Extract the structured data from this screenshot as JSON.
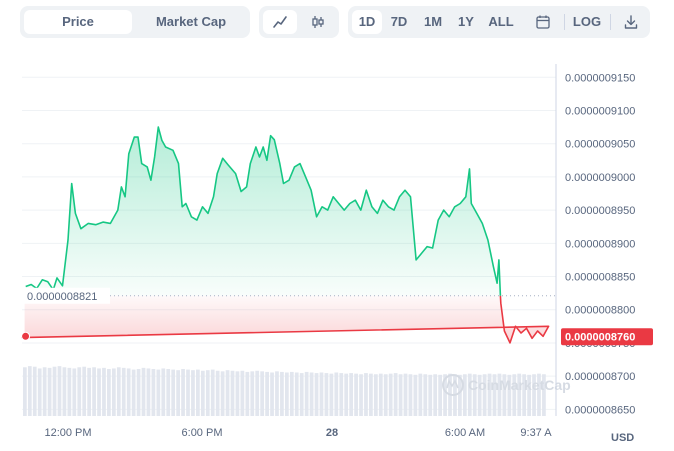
{
  "toolbar": {
    "metric_tabs": [
      {
        "label": "Price",
        "active": true
      },
      {
        "label": "Market Cap",
        "active": false
      }
    ],
    "chart_style": [
      {
        "icon": "line-chart-icon",
        "active": true
      },
      {
        "icon": "candlestick-icon",
        "active": false
      }
    ],
    "ranges": [
      {
        "label": "1D",
        "active": true
      },
      {
        "label": "7D",
        "active": false
      },
      {
        "label": "1M",
        "active": false
      },
      {
        "label": "1Y",
        "active": false
      },
      {
        "label": "ALL",
        "active": false
      }
    ],
    "calendar_icon": "calendar-icon",
    "log_label": "LOG",
    "download_icon": "download-icon"
  },
  "currency": "USD",
  "watermark": "CoinMarketCap",
  "colors": {
    "up": "#16c784",
    "down": "#ea3943",
    "grid": "#eff2f5",
    "text": "#58667e"
  },
  "chart_data": {
    "type": "area",
    "y_ticks": [
      "0.0000008650",
      "0.0000008700",
      "0.0000008750",
      "0.0000008800",
      "0.0000008850",
      "0.0000008900",
      "0.0000008950",
      "0.0000009000",
      "0.0000009050",
      "0.0000009100",
      "0.0000009150"
    ],
    "ylim": [
      8.64e-07,
      9.17e-07
    ],
    "x_ticks": [
      "12:00 PM",
      "6:00 PM",
      "28",
      "6:00 AM",
      "9:37 A"
    ],
    "reference_price": 8.821e-07,
    "reference_label": "0.0000008821",
    "current_price": 8.76e-07,
    "current_label": "0.0000008760",
    "price_points": [
      [
        "09:40",
        8.835e-07
      ],
      [
        "09:55",
        8.838e-07
      ],
      [
        "10:10",
        8.832e-07
      ],
      [
        "10:25",
        8.845e-07
      ],
      [
        "10:40",
        8.842e-07
      ],
      [
        "10:55",
        8.83e-07
      ],
      [
        "11:05",
        8.848e-07
      ],
      [
        "11:20",
        8.836e-07
      ],
      [
        "11:35",
        8.905e-07
      ],
      [
        "11:45",
        8.99e-07
      ],
      [
        "11:55",
        8.945e-07
      ],
      [
        "12:10",
        8.922e-07
      ],
      [
        "12:30",
        8.93e-07
      ],
      [
        "12:50",
        8.928e-07
      ],
      [
        "13:10",
        8.932e-07
      ],
      [
        "13:30",
        8.93e-07
      ],
      [
        "13:50",
        8.95e-07
      ],
      [
        "14:00",
        8.985e-07
      ],
      [
        "14:10",
        8.97e-07
      ],
      [
        "14:20",
        9.035e-07
      ],
      [
        "14:35",
        9.06e-07
      ],
      [
        "14:45",
        9.06e-07
      ],
      [
        "14:55",
        9.02e-07
      ],
      [
        "15:10",
        9.015e-07
      ],
      [
        "15:20",
        8.995e-07
      ],
      [
        "15:30",
        9.03e-07
      ],
      [
        "15:40",
        9.075e-07
      ],
      [
        "15:50",
        9.055e-07
      ],
      [
        "16:00",
        9.045e-07
      ],
      [
        "16:20",
        9.04e-07
      ],
      [
        "16:35",
        9.02e-07
      ],
      [
        "16:45",
        8.955e-07
      ],
      [
        "16:55",
        8.96e-07
      ],
      [
        "17:10",
        8.94e-07
      ],
      [
        "17:25",
        8.935e-07
      ],
      [
        "17:40",
        8.955e-07
      ],
      [
        "17:55",
        8.945e-07
      ],
      [
        "18:10",
        8.97e-07
      ],
      [
        "18:20",
        9.005e-07
      ],
      [
        "18:35",
        9.028e-07
      ],
      [
        "18:50",
        9.018e-07
      ],
      [
        "19:10",
        9.005e-07
      ],
      [
        "19:25",
        8.978e-07
      ],
      [
        "19:40",
        8.985e-07
      ],
      [
        "19:50",
        9.02e-07
      ],
      [
        "20:05",
        9.045e-07
      ],
      [
        "20:15",
        9.03e-07
      ],
      [
        "20:25",
        9.045e-07
      ],
      [
        "20:35",
        9.025e-07
      ],
      [
        "20:45",
        9.062e-07
      ],
      [
        "20:55",
        9.056e-07
      ],
      [
        "21:10",
        9.02e-07
      ],
      [
        "21:20",
        8.99e-07
      ],
      [
        "21:35",
        8.995e-07
      ],
      [
        "21:50",
        9.015e-07
      ],
      [
        "22:05",
        9.02e-07
      ],
      [
        "22:20",
        9e-07
      ],
      [
        "22:35",
        8.98e-07
      ],
      [
        "22:50",
        8.94e-07
      ],
      [
        "23:05",
        8.955e-07
      ],
      [
        "23:20",
        8.95e-07
      ],
      [
        "23:35",
        8.97e-07
      ],
      [
        "23:50",
        8.96e-07
      ],
      [
        "00:05",
        8.95e-07
      ],
      [
        "00:20",
        8.96e-07
      ],
      [
        "00:35",
        8.965e-07
      ],
      [
        "00:50",
        8.95e-07
      ],
      [
        "01:05",
        8.98e-07
      ],
      [
        "01:20",
        8.955e-07
      ],
      [
        "01:35",
        8.945e-07
      ],
      [
        "01:50",
        8.965e-07
      ],
      [
        "02:05",
        8.955e-07
      ],
      [
        "02:20",
        8.95e-07
      ],
      [
        "02:35",
        8.97e-07
      ],
      [
        "02:50",
        8.98e-07
      ],
      [
        "03:05",
        8.97e-07
      ],
      [
        "03:20",
        8.875e-07
      ],
      [
        "03:35",
        8.885e-07
      ],
      [
        "03:50",
        8.895e-07
      ],
      [
        "04:05",
        8.893e-07
      ],
      [
        "04:20",
        8.935e-07
      ],
      [
        "04:35",
        8.95e-07
      ],
      [
        "04:50",
        8.94e-07
      ],
      [
        "05:05",
        8.955e-07
      ],
      [
        "05:20",
        8.96e-07
      ],
      [
        "05:35",
        8.97e-07
      ],
      [
        "05:45",
        9.012e-07
      ],
      [
        "05:50",
        8.96e-07
      ],
      [
        "06:05",
        8.945e-07
      ],
      [
        "06:20",
        8.93e-07
      ],
      [
        "06:35",
        8.905e-07
      ],
      [
        "06:50",
        8.865e-07
      ],
      [
        "07:00",
        8.84e-07
      ],
      [
        "07:05",
        8.875e-07
      ],
      [
        "07:10",
        8.81e-07
      ],
      [
        "07:20",
        8.768e-07
      ],
      [
        "07:35",
        8.75e-07
      ],
      [
        "07:50",
        8.775e-07
      ],
      [
        "08:05",
        8.765e-07
      ],
      [
        "08:20",
        8.772e-07
      ],
      [
        "08:35",
        8.757e-07
      ],
      [
        "08:50",
        8.768e-07
      ],
      [
        "09:05",
        8.76e-07
      ],
      [
        "09:20",
        8.775e-07
      ],
      [
        "09:30",
        8.758e-07
      ],
      [
        "09:37",
        8.76e-07
      ]
    ],
    "volume": [
      0.84,
      0.86,
      0.85,
      0.82,
      0.84,
      0.83,
      0.85,
      0.86,
      0.84,
      0.83,
      0.82,
      0.84,
      0.85,
      0.83,
      0.84,
      0.82,
      0.83,
      0.81,
      0.82,
      0.84,
      0.83,
      0.82,
      0.8,
      0.81,
      0.83,
      0.82,
      0.81,
      0.8,
      0.82,
      0.81,
      0.8,
      0.79,
      0.81,
      0.8,
      0.79,
      0.8,
      0.78,
      0.79,
      0.8,
      0.78,
      0.77,
      0.79,
      0.78,
      0.77,
      0.78,
      0.76,
      0.77,
      0.78,
      0.77,
      0.76,
      0.75,
      0.77,
      0.76,
      0.75,
      0.76,
      0.75,
      0.74,
      0.76,
      0.75,
      0.74,
      0.75,
      0.74,
      0.73,
      0.75,
      0.74,
      0.73,
      0.74,
      0.73,
      0.72,
      0.74,
      0.73,
      0.72,
      0.73,
      0.72,
      0.73,
      0.74,
      0.72,
      0.73,
      0.72,
      0.71,
      0.73,
      0.72,
      0.71,
      0.72,
      0.71,
      0.72,
      0.73,
      0.72,
      0.71,
      0.72,
      0.73,
      0.72,
      0.71,
      0.72,
      0.73,
      0.72,
      0.73,
      0.72,
      0.71,
      0.72,
      0.73,
      0.72,
      0.71,
      0.72,
      0.73,
      0.72
    ]
  }
}
